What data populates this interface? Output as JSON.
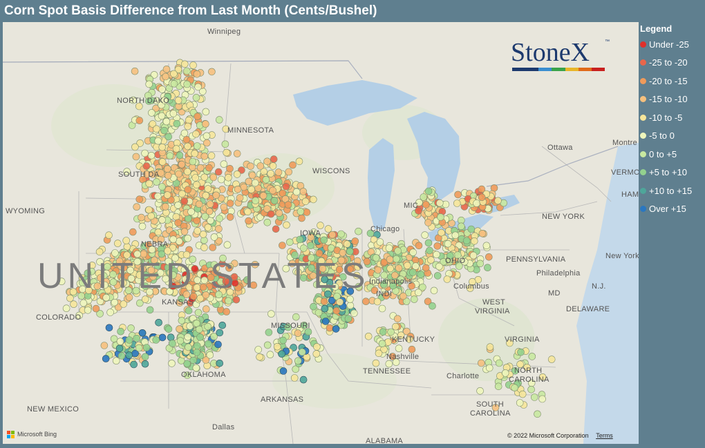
{
  "title": "Corn Spot Basis Difference from Last Month (Cents/Bushel)",
  "legend": {
    "title": "Legend",
    "items": [
      {
        "label": "Under -25",
        "color": "#e0302a"
      },
      {
        "label": "-25 to -20",
        "color": "#e8664a"
      },
      {
        "label": "-20 to -15",
        "color": "#f09a5a"
      },
      {
        "label": "-15 to -10",
        "color": "#f6c07e"
      },
      {
        "label": "-10 to -5",
        "color": "#f6e59a"
      },
      {
        "label": "-5 to 0",
        "color": "#eef5bb"
      },
      {
        "label": "0 to +5",
        "color": "#c8e8a0"
      },
      {
        "label": "+5 to +10",
        "color": "#93d18e"
      },
      {
        "label": "+10 to +15",
        "color": "#4ea69a"
      },
      {
        "label": "Over +15",
        "color": "#2a77c0"
      }
    ]
  },
  "logo": {
    "text": "StoneX",
    "tm": "™",
    "colors": [
      "#1d3a6e",
      "#1d3a6e",
      "#3a8ed0",
      "#3aa34a",
      "#e8b62a",
      "#e06a1a",
      "#c8201e"
    ]
  },
  "map_labels": {
    "winnipeg": "Winnipeg",
    "north_dakota": "NORTH DAKO",
    "minnesota": "MINNESOTA",
    "south_dakota": "SOUTH DA",
    "wisconsin": "WISCONS",
    "michigan": "MIC",
    "chicago": "Chicago",
    "iowa": "IOWA",
    "nebraska": "NEBRA",
    "wyoming": "WYOMING",
    "colorado": "COLORADO",
    "united_states": "UNITED STATES",
    "indiana": "INDI",
    "ohio": "OHIO",
    "indianapolis": "Indianapolis",
    "columbus": "Columbus",
    "missouri": "MISSOURI",
    "kansas": "KANSAS",
    "kentucky": "KENTUCKY",
    "nashville": "Nashville",
    "tennessee": "TENNESSEE",
    "oklahoma": "OKLAHOMA",
    "arkansas": "ARKANSAS",
    "new_mexico": "NEW MEXICO",
    "dallas": "Dallas",
    "alabama": "ALABAMA",
    "charlotte": "Charlotte",
    "north_carolina_1": "NORTH",
    "north_carolina_2": "CAROLINA",
    "south_carolina_1": "SOUTH",
    "south_carolina_2": "CAROLINA",
    "virginia": "VIRGINIA",
    "west_virginia_1": "WEST",
    "west_virginia_2": "VIRGINIA",
    "pennsylvania": "PENNSYLVANIA",
    "new_york_state": "NEW YORK",
    "new_york_city": "New York",
    "philadelphia": "Philadelphia",
    "md": "MD",
    "delaware": "DELAWARE",
    "nj": "N.J.",
    "ottawa": "Ottawa",
    "montreal": "Montre",
    "vermont": "VERMON",
    "hampshire": "HAMP"
  },
  "attribution": {
    "bing": "Microsoft Bing",
    "copyright": "© 2022 Microsoft Corporation",
    "terms": "Terms"
  }
}
